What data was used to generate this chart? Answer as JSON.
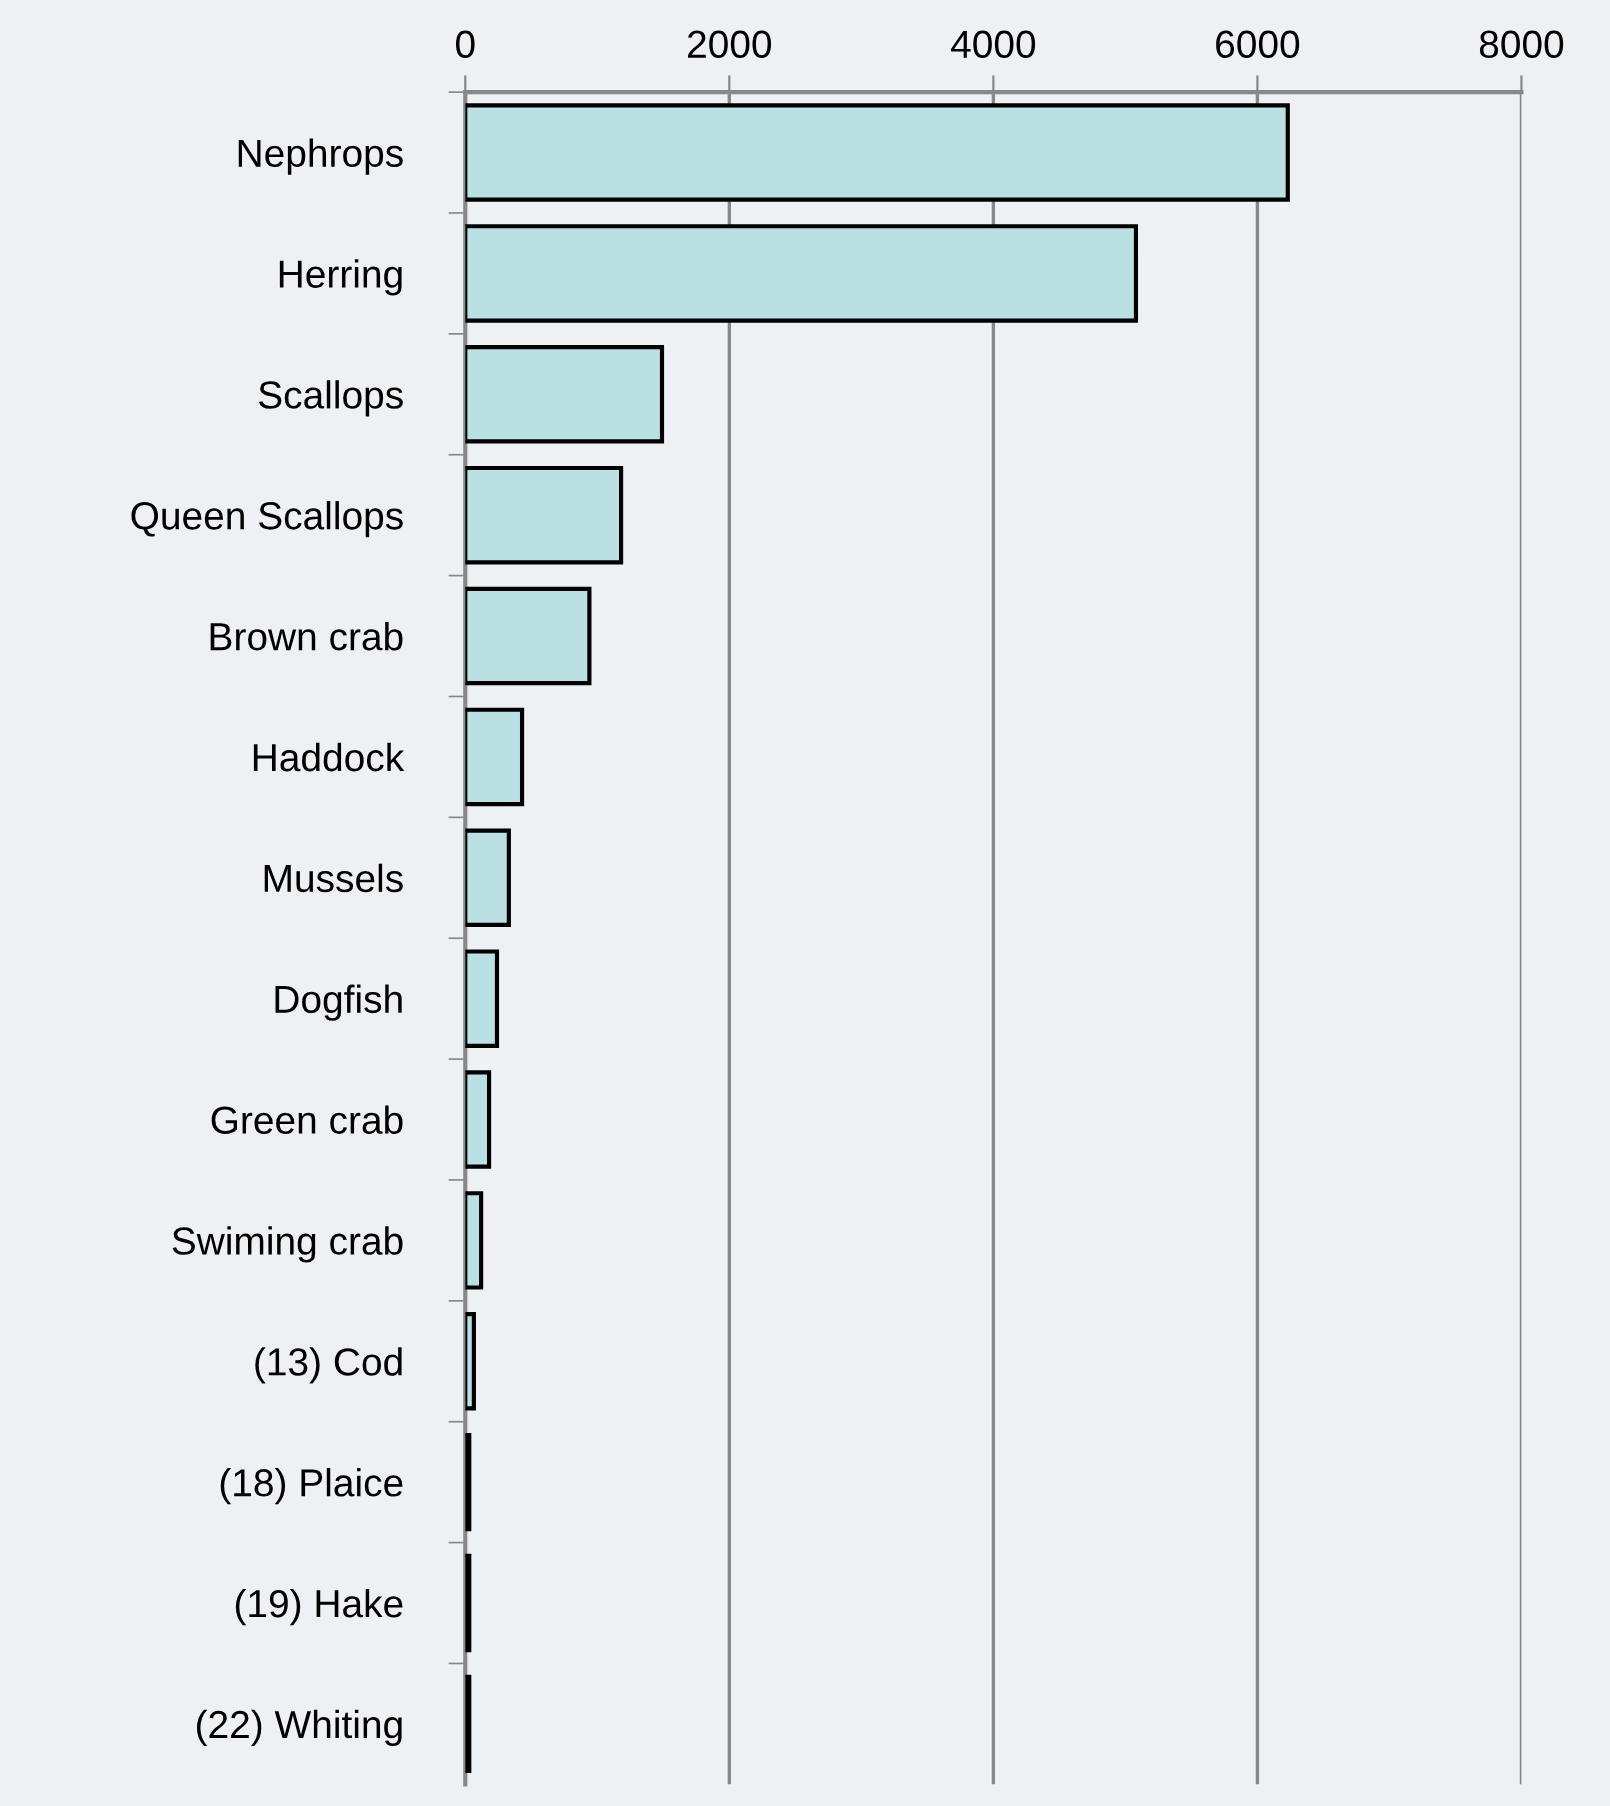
{
  "chart_data": {
    "type": "bar",
    "orientation": "horizontal",
    "categories": [
      "Nephrops",
      "Herring",
      "Scallops",
      "Queen Scallops",
      "Brown crab",
      "Haddock",
      "Mussels",
      "Dogfish",
      "Green crab",
      "Swiming crab",
      "(13) Cod",
      "(18) Plaice",
      "(19) Hake",
      "(22) Whiting"
    ],
    "values": [
      6230,
      5080,
      1490,
      1180,
      940,
      430,
      330,
      240,
      180,
      120,
      65,
      30,
      30,
      30
    ],
    "color": "#bae0e3",
    "xlim": [
      0,
      8000
    ],
    "xticks": [
      0,
      2000,
      4000,
      6000,
      8000
    ],
    "grid": "x",
    "legend": false
  }
}
